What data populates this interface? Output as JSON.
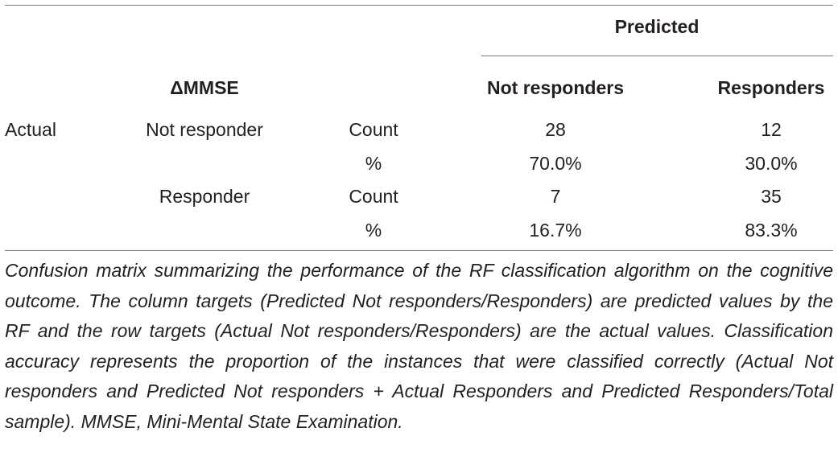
{
  "table": {
    "group_header": "Predicted",
    "row_group_header": "ΔMMSE",
    "columns": [
      "Not responders",
      "Responders"
    ],
    "rows": [
      {
        "actual": "Actual",
        "class": "Not responder",
        "measure": "Count",
        "values": [
          "28",
          "12"
        ]
      },
      {
        "actual": "",
        "class": "",
        "measure": "%",
        "values": [
          "70.0%",
          "30.0%"
        ]
      },
      {
        "actual": "",
        "class": "Responder",
        "measure": "Count",
        "values": [
          "7",
          "35"
        ]
      },
      {
        "actual": "",
        "class": "",
        "measure": "%",
        "values": [
          "16.7%",
          "83.3%"
        ]
      }
    ]
  },
  "caption": "Confusion matrix summarizing the performance of the RF classification algorithm on the cognitive outcome. The column targets (Predicted Not respon­ders/Responders) are predicted values by the RF and the row targets (Actual Not responders/Responders) are the actual values. Classification accuracy represents the proportion of the instances that were classified correctly (Actual Not responders and Predicted Not responders + Actual Responders and Predicted Responders/Total sample). MMSE, Mini-Mental State Examination."
}
